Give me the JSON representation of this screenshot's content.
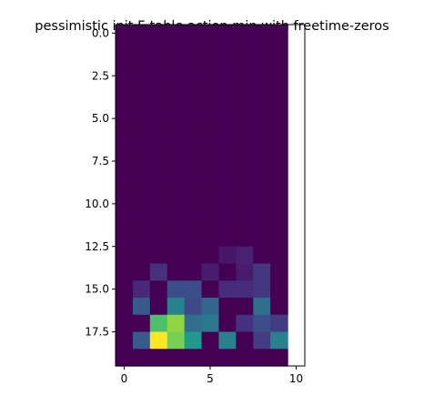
{
  "chart_data": {
    "type": "heatmap",
    "title": "pessimistic init F-table action min with freetime-zeros",
    "xlabel": "",
    "ylabel": "",
    "rows": 20,
    "cols": 10,
    "xlim": [
      -0.5,
      10.5
    ],
    "ylim": [
      19.5,
      -0.5
    ],
    "x_ticks": [
      0,
      5,
      10
    ],
    "x_tick_labels": [
      "0",
      "5",
      "10"
    ],
    "y_ticks": [
      0.0,
      2.5,
      5.0,
      7.5,
      10.0,
      12.5,
      15.0,
      17.5
    ],
    "y_tick_labels": [
      "0.0",
      "2.5",
      "5.0",
      "7.5",
      "10.0",
      "12.5",
      "15.0",
      "17.5"
    ],
    "colormap": "viridis",
    "vmin": 0,
    "vmax": 1,
    "grid": false,
    "values": [
      [
        0,
        0,
        0,
        0,
        0,
        0,
        0,
        0,
        0,
        0
      ],
      [
        0,
        0,
        0,
        0,
        0,
        0,
        0,
        0,
        0,
        0
      ],
      [
        0,
        0,
        0,
        0,
        0,
        0,
        0,
        0,
        0,
        0
      ],
      [
        0,
        0,
        0,
        0,
        0,
        0,
        0,
        0,
        0,
        0
      ],
      [
        0,
        0,
        0,
        0,
        0,
        0,
        0,
        0,
        0,
        0
      ],
      [
        0,
        0,
        0,
        0,
        0,
        0,
        0,
        0,
        0,
        0
      ],
      [
        0,
        0,
        0,
        0,
        0,
        0,
        0,
        0,
        0,
        0
      ],
      [
        0,
        0,
        0,
        0,
        0,
        0,
        0,
        0,
        0,
        0
      ],
      [
        0,
        0,
        0,
        0,
        0,
        0,
        0,
        0,
        0,
        0
      ],
      [
        0,
        0,
        0,
        0,
        0,
        0,
        0,
        0,
        0,
        0
      ],
      [
        0,
        0,
        0,
        0,
        0,
        0,
        0,
        0,
        0,
        0
      ],
      [
        0,
        0,
        0,
        0,
        0,
        0,
        0,
        0,
        0,
        0
      ],
      [
        0,
        0,
        0,
        0,
        0,
        0,
        0,
        0,
        0,
        0
      ],
      [
        0,
        0,
        0,
        0,
        0,
        0,
        0.08,
        0.12,
        0,
        0
      ],
      [
        0,
        0,
        0.18,
        0,
        0,
        0.1,
        0,
        0.1,
        0.2,
        0
      ],
      [
        0,
        0.15,
        0,
        0.3,
        0.3,
        0,
        0.16,
        0.16,
        0.2,
        0
      ],
      [
        0,
        0.35,
        0,
        0.55,
        0.28,
        0.42,
        0,
        0,
        0.45,
        0
      ],
      [
        0,
        0,
        0.8,
        0.88,
        0.45,
        0.5,
        0,
        0.18,
        0.3,
        0.22
      ],
      [
        0,
        0.35,
        1.0,
        0.85,
        0.68,
        0,
        0.55,
        0,
        0.22,
        0.55
      ],
      [
        0,
        0,
        0,
        0,
        0,
        0,
        0,
        0,
        0,
        0
      ]
    ]
  }
}
